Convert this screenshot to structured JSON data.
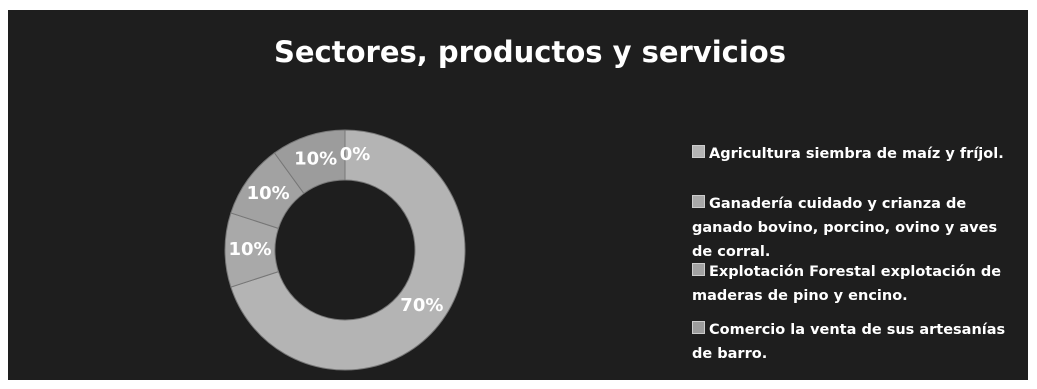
{
  "chart_data": {
    "type": "donut",
    "title": "Sectores, productos y servicios",
    "categories": [
      "Agricultura siembra de maíz y fríjol.",
      "Ganadería cuidado y crianza de ganado bovino, porcino, ovino y aves de corral.",
      "Explotación Forestal explotación de maderas de pino y encino.",
      "Comercio la venta de sus artesanías de barro.",
      null
    ],
    "values": [
      70,
      10,
      10,
      10,
      0
    ],
    "value_labels": [
      "70%",
      "10%",
      "10%",
      "10%",
      "0%"
    ],
    "colors": [
      "#b4b4b4",
      "#a9a9a9",
      "#a2a2a2",
      "#9c9c9c",
      "#969696"
    ],
    "legend": "right"
  }
}
